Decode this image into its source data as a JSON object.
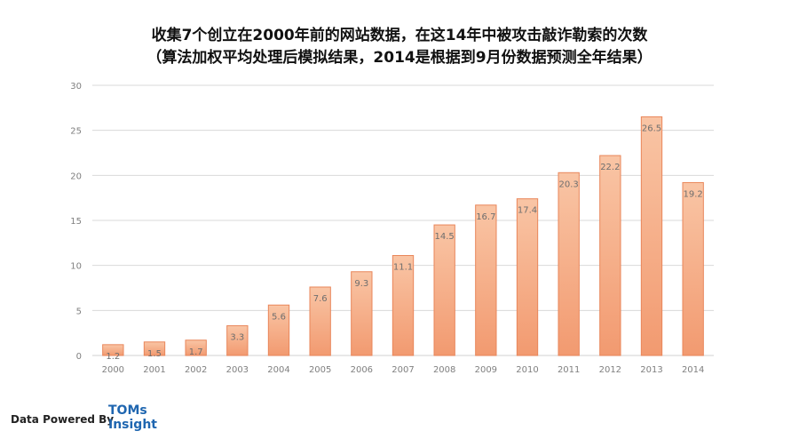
{
  "title": {
    "line1": "收集7个创立在2000年前的网站数据，在这14年中被攻击敲诈勒索的次数",
    "line2": "（算法加权平均处理后模拟结果，2014是根据到9月份数据预测全年结果）"
  },
  "colors": {
    "bar_top": "#f9c5a5",
    "bar_bottom": "#f29a70",
    "bar_stroke": "#e9865a",
    "grid": "#d9d9d9",
    "axis_text": "#7f7f7f",
    "logo": "#1f66b0"
  },
  "chart_data": {
    "type": "bar",
    "categories": [
      "2000",
      "2001",
      "2002",
      "2003",
      "2004",
      "2005",
      "2006",
      "2007",
      "2008",
      "2009",
      "2010",
      "2011",
      "2012",
      "2013",
      "2014"
    ],
    "values": [
      1.2,
      1.5,
      1.7,
      3.3,
      5.6,
      7.6,
      9.3,
      11.1,
      14.5,
      16.7,
      17.4,
      20.3,
      22.2,
      26.5,
      19.2
    ],
    "data_labels": [
      "1.2",
      "1.5",
      "1.7",
      "3.3",
      "5.6",
      "7.6",
      "9.3",
      "11.1",
      "14.5",
      "16.7",
      "17.4",
      "20.3",
      "22.2",
      "26.5",
      "19.2"
    ],
    "ylim": [
      0,
      30
    ],
    "yticks": [
      "0",
      "5",
      "10",
      "15",
      "20",
      "25",
      "30"
    ],
    "ytick_values": [
      0,
      5,
      10,
      15,
      20,
      25,
      30
    ],
    "grid": true,
    "legend": "none"
  },
  "footer": {
    "powered_by": "Data Powered By",
    "logo_line1": "TOMs",
    "logo_line2": "Insight"
  }
}
